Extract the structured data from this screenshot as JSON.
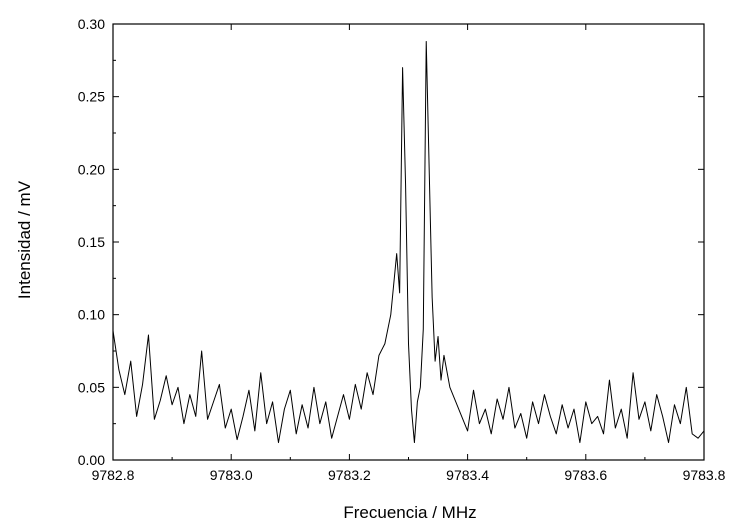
{
  "chart_data": {
    "type": "line",
    "title": "",
    "xlabel": "Frecuencia / MHz",
    "ylabel": "Intensidad / mV",
    "xlim": [
      9782.8,
      9783.8
    ],
    "ylim": [
      0.0,
      0.3
    ],
    "xticks": [
      9782.8,
      9783.0,
      9783.2,
      9783.4,
      9783.6,
      9783.8
    ],
    "xtick_labels": [
      "9782.8",
      "9783.0",
      "9783.2",
      "9783.4",
      "9783.6",
      "9783.8"
    ],
    "yticks": [
      0.0,
      0.05,
      0.1,
      0.15,
      0.2,
      0.25,
      0.3
    ],
    "ytick_labels": [
      "0.00",
      "0.05",
      "0.10",
      "0.15",
      "0.20",
      "0.25",
      "0.30"
    ],
    "grid": false,
    "legend": "none",
    "line_color": "#000000",
    "series": [
      {
        "x": [
          9782.8,
          9782.81,
          9782.82,
          9782.83,
          9782.84,
          9782.85,
          9782.86,
          9782.87,
          9782.88,
          9782.89,
          9782.9,
          9782.91,
          9782.92,
          9782.93,
          9782.94,
          9782.95,
          9782.96,
          9782.97,
          9782.98,
          9782.99,
          9783.0,
          9783.01,
          9783.02,
          9783.03,
          9783.04,
          9783.05,
          9783.06,
          9783.07,
          9783.08,
          9783.09,
          9783.1,
          9783.11,
          9783.12,
          9783.13,
          9783.14,
          9783.15,
          9783.16,
          9783.17,
          9783.18,
          9783.19,
          9783.2,
          9783.21,
          9783.22,
          9783.23,
          9783.24,
          9783.25,
          9783.26,
          9783.27,
          9783.28,
          9783.285,
          9783.29,
          9783.295,
          9783.3,
          9783.305,
          9783.31,
          9783.315,
          9783.32,
          9783.325,
          9783.33,
          9783.335,
          9783.34,
          9783.345,
          9783.35,
          9783.355,
          9783.36,
          9783.37,
          9783.38,
          9783.39,
          9783.4,
          9783.41,
          9783.42,
          9783.43,
          9783.44,
          9783.45,
          9783.46,
          9783.47,
          9783.48,
          9783.49,
          9783.5,
          9783.51,
          9783.52,
          9783.53,
          9783.54,
          9783.55,
          9783.56,
          9783.57,
          9783.58,
          9783.59,
          9783.6,
          9783.61,
          9783.62,
          9783.63,
          9783.64,
          9783.65,
          9783.66,
          9783.67,
          9783.68,
          9783.69,
          9783.7,
          9783.71,
          9783.72,
          9783.73,
          9783.74,
          9783.75,
          9783.76,
          9783.77,
          9783.78,
          9783.79,
          9783.8
        ],
        "y": [
          0.089,
          0.062,
          0.045,
          0.068,
          0.03,
          0.052,
          0.086,
          0.028,
          0.041,
          0.058,
          0.038,
          0.05,
          0.025,
          0.045,
          0.03,
          0.075,
          0.028,
          0.04,
          0.052,
          0.022,
          0.035,
          0.014,
          0.03,
          0.048,
          0.02,
          0.06,
          0.025,
          0.04,
          0.012,
          0.035,
          0.048,
          0.018,
          0.038,
          0.022,
          0.05,
          0.025,
          0.04,
          0.015,
          0.03,
          0.045,
          0.028,
          0.052,
          0.035,
          0.06,
          0.045,
          0.072,
          0.08,
          0.1,
          0.142,
          0.115,
          0.27,
          0.19,
          0.08,
          0.035,
          0.012,
          0.04,
          0.05,
          0.09,
          0.288,
          0.2,
          0.112,
          0.068,
          0.085,
          0.055,
          0.072,
          0.05,
          0.04,
          0.03,
          0.02,
          0.048,
          0.025,
          0.035,
          0.018,
          0.042,
          0.028,
          0.05,
          0.022,
          0.032,
          0.015,
          0.04,
          0.025,
          0.045,
          0.03,
          0.018,
          0.038,
          0.022,
          0.035,
          0.012,
          0.04,
          0.025,
          0.03,
          0.018,
          0.055,
          0.022,
          0.035,
          0.015,
          0.06,
          0.028,
          0.04,
          0.02,
          0.045,
          0.03,
          0.012,
          0.038,
          0.025,
          0.05,
          0.018,
          0.015,
          0.02
        ]
      }
    ]
  }
}
